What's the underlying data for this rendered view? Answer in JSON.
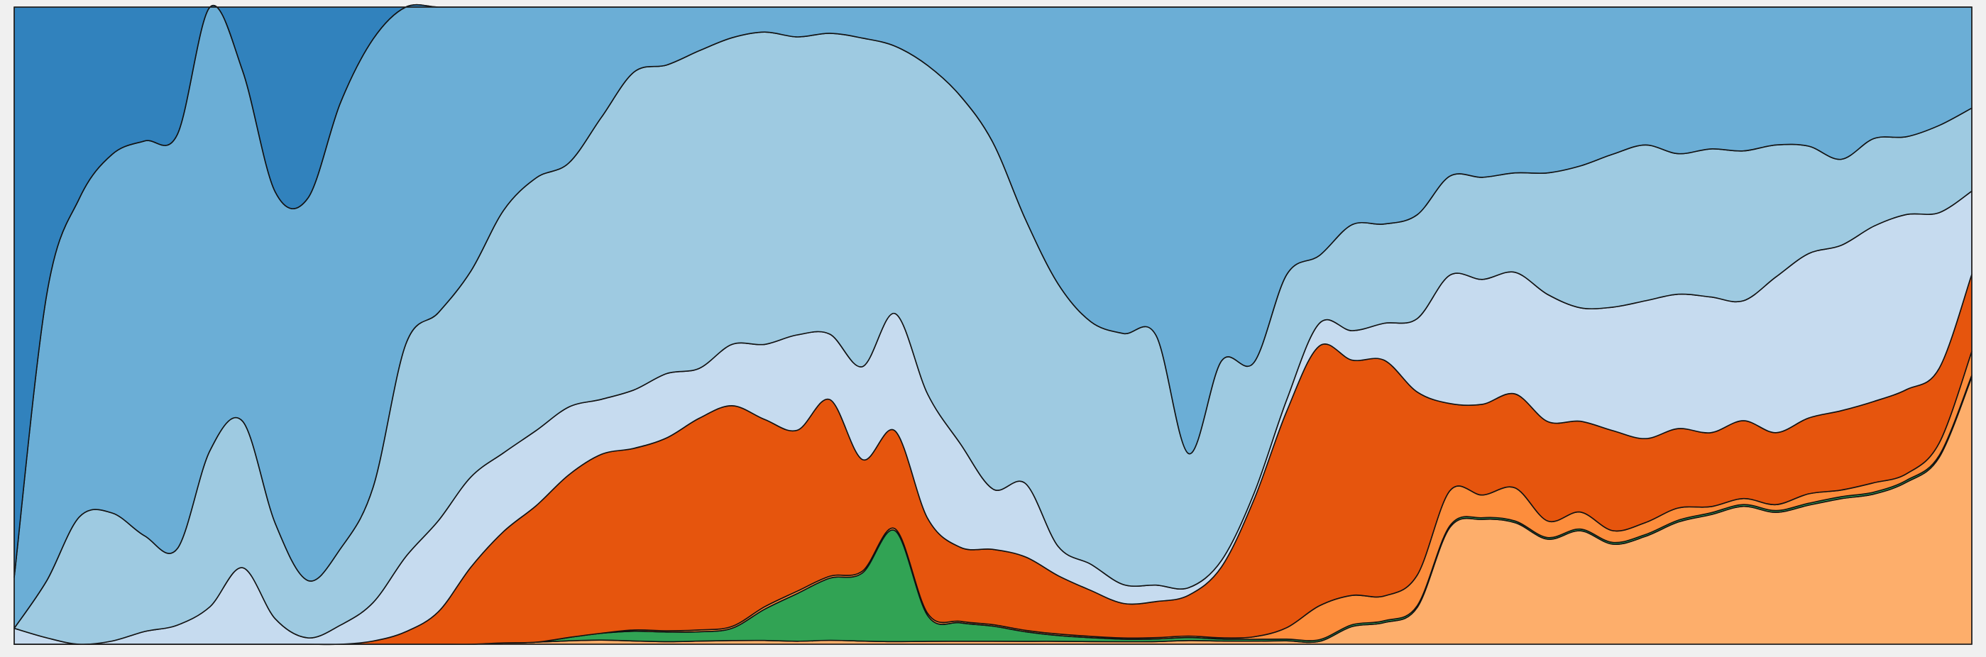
{
  "chart_data": {
    "type": "area",
    "stacking": "normalized-100",
    "title": "",
    "xlabel": "",
    "ylabel": "",
    "axes_visible": false,
    "grid": false,
    "legend": "none",
    "ylim": [
      0,
      100
    ],
    "x": [
      0,
      1,
      2,
      3,
      4,
      5,
      6,
      7,
      8,
      9,
      10,
      11,
      12,
      13,
      14,
      15,
      16,
      17,
      18,
      19,
      20,
      21,
      22,
      23,
      24,
      25,
      26,
      27,
      28,
      29,
      30,
      31,
      32,
      33,
      34,
      35,
      36,
      37,
      38,
      39,
      40,
      41,
      42,
      43,
      44,
      45,
      46,
      47,
      48,
      49,
      50,
      51,
      52,
      53,
      54,
      55,
      56,
      57,
      58,
      59,
      60
    ],
    "series": [
      {
        "color": "#fdae6b",
        "values": [
          0,
          0,
          0,
          0,
          0,
          0,
          0,
          0,
          0,
          0,
          0,
          0,
          0,
          0,
          0,
          0.2,
          0.3,
          0.5,
          0.6,
          0.5,
          0.4,
          0.5,
          0.6,
          0.6,
          0.5,
          0.6,
          0.5,
          0.4,
          0.4,
          0.4,
          0.4,
          0.4,
          0.4,
          0.4,
          0.4,
          0.4,
          0.5,
          0.5,
          0.5,
          0.6,
          0.5,
          3,
          3.5,
          6,
          20,
          22,
          22,
          19,
          20,
          17,
          18,
          20,
          21,
          23,
          22,
          22,
          22,
          24,
          25,
          30,
          45
        ]
      },
      {
        "color": "#31a354",
        "values": [
          0,
          0,
          0,
          0,
          0,
          0,
          0,
          0,
          0,
          0,
          0,
          0,
          0,
          0,
          0,
          0,
          0,
          0.5,
          1,
          1.5,
          1.5,
          1.5,
          2,
          5,
          8,
          9.5,
          11,
          17,
          3.5,
          2.5,
          2,
          1.3,
          0.8,
          0.6,
          0.4,
          0.4,
          0.4,
          0.3,
          0.3,
          0.3,
          0.3,
          0.3,
          0.3,
          0.3,
          0.3,
          0.3,
          0.3,
          0.3,
          0.3,
          0.3,
          0.3,
          0.3,
          0.3,
          0.3,
          0.3,
          0.3,
          0.3,
          0.3,
          0.3,
          0.3,
          0.3
        ]
      },
      {
        "color": "#fd8d3c",
        "values": [
          0,
          0,
          0,
          0,
          0,
          0,
          0,
          0,
          0,
          0,
          0,
          0,
          0,
          0,
          0,
          0,
          0,
          0,
          0,
          0.2,
          0.2,
          0.3,
          0.3,
          0.4,
          0.4,
          0.3,
          0.3,
          0.3,
          0.3,
          0.2,
          0.2,
          0.2,
          0.2,
          0.2,
          0.2,
          0.2,
          0.2,
          0.2,
          0.4,
          2,
          6,
          5,
          4,
          5,
          6,
          4,
          6,
          3,
          3,
          2,
          2,
          2,
          1,
          1,
          1,
          1.5,
          1,
          1.5,
          1,
          2,
          4
        ]
      },
      {
        "color": "#e6550d",
        "values": [
          0,
          0,
          0,
          0,
          0,
          0,
          0,
          0,
          0,
          0,
          0,
          0.5,
          2,
          5,
          12,
          17,
          20,
          24,
          26,
          28,
          30,
          34,
          36,
          30,
          27,
          27,
          18,
          15,
          13,
          10,
          10,
          10,
          8,
          7,
          5.5,
          5.5,
          5.5,
          11,
          22,
          38,
          46,
          40,
          38,
          30,
          15,
          16,
          17,
          18,
          16,
          17,
          14,
          13,
          12,
          13,
          12,
          12,
          12,
          13,
          13,
          12,
          13
        ]
      },
      {
        "color": "#c6dbef",
        "values": [
          2.5,
          1,
          0,
          0.5,
          2,
          3,
          6,
          12,
          4,
          1,
          3,
          6,
          12,
          14,
          14,
          12,
          11,
          10,
          8,
          9,
          10,
          8,
          10,
          12,
          16,
          10,
          15,
          18,
          17,
          14,
          8,
          10,
          4,
          4,
          3,
          2.5,
          1,
          1,
          1,
          2,
          4,
          5,
          6,
          12,
          22,
          22,
          22,
          23,
          20,
          21,
          23,
          22,
          22,
          20,
          26,
          26,
          25,
          28,
          27,
          25,
          14
        ]
      },
      {
        "color": "#9ecae1",
        "values": [
          0,
          9,
          20,
          20,
          15,
          12,
          25,
          23,
          15,
          9,
          12,
          18,
          34,
          32,
          32,
          37,
          37,
          36,
          41,
          49,
          48,
          51,
          50,
          50,
          50,
          46,
          53,
          41,
          45,
          47,
          46,
          36,
          36,
          37,
          40,
          38,
          18,
          31,
          21,
          22,
          12,
          18,
          16,
          17,
          17,
          18,
          18,
          22,
          25,
          26,
          26,
          23,
          24,
          25,
          22,
          17,
          13,
          14,
          12,
          14,
          14
        ]
      },
      {
        "color": "#6baed6",
        "values": [
          8,
          45,
          50,
          56,
          62,
          65,
          71,
          55,
          52,
          60,
          70,
          70,
          54,
          47,
          41,
          31,
          25,
          23,
          16,
          10,
          9,
          7,
          5,
          4,
          5,
          4,
          5,
          6,
          8,
          12,
          18,
          29,
          38,
          48,
          52,
          50,
          60,
          55,
          57,
          47,
          44,
          37,
          35,
          34,
          29,
          30,
          30,
          30,
          28,
          25,
          23,
          24,
          23,
          24,
          23,
          22,
          23,
          21,
          20,
          19,
          17
        ]
      },
      {
        "color": "#3182bd",
        "values": [
          89.5,
          45,
          30,
          23,
          21,
          20,
          0,
          10,
          29,
          30,
          15,
          5,
          0,
          0,
          0,
          0,
          0,
          0,
          0,
          0,
          0,
          0,
          0,
          0,
          0,
          0,
          0,
          0,
          0,
          0,
          0,
          0,
          0,
          0,
          0,
          0,
          0,
          0,
          0,
          0,
          0,
          0,
          0,
          0,
          0,
          0,
          0,
          0,
          0,
          0,
          0,
          0,
          0,
          0,
          0,
          0,
          0,
          0,
          0,
          0,
          0
        ]
      }
    ]
  }
}
